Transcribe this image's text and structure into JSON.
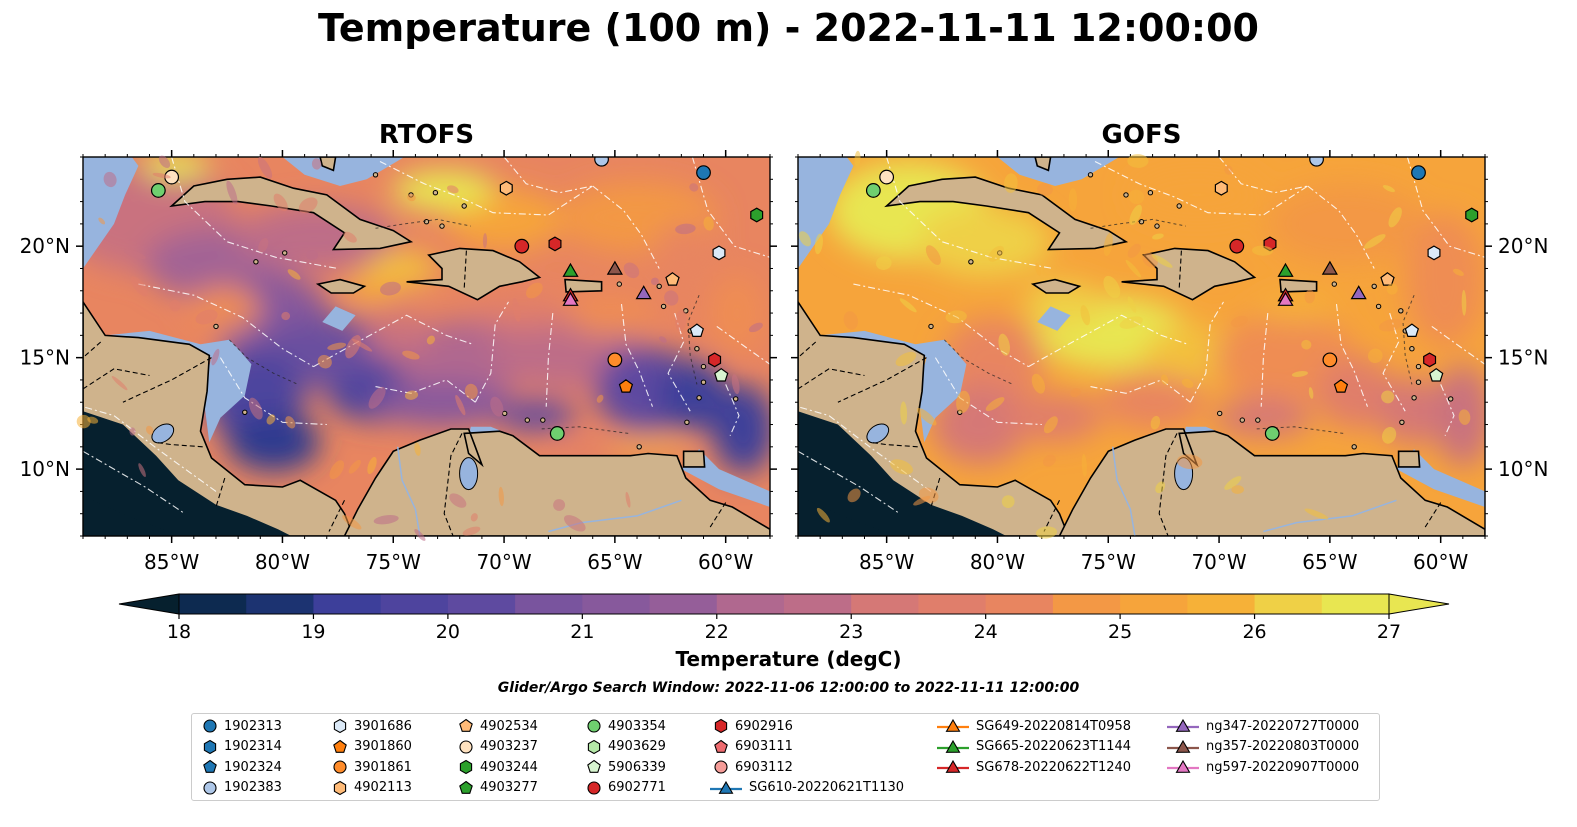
{
  "title": "Temperature (100 m) - 2022-11-11 12:00:00",
  "panels": [
    {
      "title": "RTOFS",
      "lon_ticks": [
        "85°W",
        "80°W",
        "75°W",
        "70°W",
        "65°W",
        "60°W"
      ],
      "lat_ticks": [
        "20°N",
        "15°N",
        "10°N"
      ]
    },
    {
      "title": "GOFS",
      "lon_ticks": [
        "85°W",
        "80°W",
        "75°W",
        "70°W",
        "65°W",
        "60°W"
      ],
      "lat_ticks": [
        "20°N",
        "15°N",
        "10°N"
      ]
    }
  ],
  "colorbar": {
    "label": "Temperature (degC)",
    "ticks": [
      "18",
      "19",
      "20",
      "21",
      "22",
      "23",
      "24",
      "25",
      "26",
      "27"
    ],
    "colors": [
      "#06202e",
      "#0d2a50",
      "#1c3371",
      "#2d3b8f",
      "#3d3f9a",
      "#4e449e",
      "#5e4aa0",
      "#6b4f9f",
      "#79549e",
      "#87599c",
      "#955e99",
      "#a36394",
      "#b0688f",
      "#bd6d88",
      "#c9727f",
      "#d57876",
      "#e07e6b",
      "#e88560",
      "#ef8d52",
      "#f39845",
      "#f6a43b",
      "#f6b138",
      "#f3c03c",
      "#efd046",
      "#e8e651"
    ]
  },
  "search_window": "Glider/Argo Search Window: 2022-11-06 12:00:00 to 2022-11-11 12:00:00",
  "legend": [
    {
      "label": "1902313",
      "marker": "circle",
      "color": "#1f77b4"
    },
    {
      "label": "1902314",
      "marker": "hexagon",
      "color": "#1f77b4"
    },
    {
      "label": "1902324",
      "marker": "pentagon",
      "color": "#1f77b4"
    },
    {
      "label": "1902383",
      "marker": "circle",
      "color": "#aec7e8"
    },
    {
      "label": "3901686",
      "marker": "hexagon",
      "color": "#dbe9f7"
    },
    {
      "label": "3901860",
      "marker": "pentagon",
      "color": "#ff7f0e"
    },
    {
      "label": "3901861",
      "marker": "circle",
      "color": "#ff8c2a"
    },
    {
      "label": "4902113",
      "marker": "hexagon",
      "color": "#ffbb78"
    },
    {
      "label": "4902534",
      "marker": "pentagon",
      "color": "#ffbb78"
    },
    {
      "label": "4903237",
      "marker": "circle",
      "color": "#ffe2c0"
    },
    {
      "label": "4903244",
      "marker": "hexagon",
      "color": "#2ca02c"
    },
    {
      "label": "4903277",
      "marker": "pentagon",
      "color": "#2ca02c"
    },
    {
      "label": "4903354",
      "marker": "circle",
      "color": "#6fcf6f"
    },
    {
      "label": "4903629",
      "marker": "hexagon",
      "color": "#b5e8a8"
    },
    {
      "label": "5906339",
      "marker": "pentagon",
      "color": "#d8f5d0"
    },
    {
      "label": "6902771",
      "marker": "circle",
      "color": "#d62728"
    },
    {
      "label": "6902916",
      "marker": "hexagon",
      "color": "#d62728"
    },
    {
      "label": "6903111",
      "marker": "pentagon",
      "color": "#ee6b6f"
    },
    {
      "label": "6903112",
      "marker": "circle",
      "color": "#f59c98"
    },
    {
      "label": "SG610-20220621T1130",
      "marker": "triangle-line",
      "color": "#1f77b4"
    },
    {
      "label": "SG649-20220814T0958",
      "marker": "triangle-line",
      "color": "#ff7f0e"
    },
    {
      "label": "SG665-20220623T1144",
      "marker": "triangle-line",
      "color": "#2ca02c"
    },
    {
      "label": "SG678-20220622T1240",
      "marker": "triangle-line",
      "color": "#d62728"
    },
    {
      "label": "ng347-20220727T0000",
      "marker": "triangle-line",
      "color": "#9467bd"
    },
    {
      "label": "ng357-20220803T0000",
      "marker": "triangle-line",
      "color": "#8c564b"
    },
    {
      "label": "ng597-20220907T0000",
      "marker": "triangle-line",
      "color": "#e377c2"
    }
  ],
  "map": {
    "lon_range": [
      -89,
      -58
    ],
    "lat_range": [
      7,
      24
    ],
    "colors": {
      "land": "#cfb38c",
      "shallow": "#97b4de",
      "deep_cold": "#06202e",
      "coast": "#000000",
      "eez": "#ffffff"
    },
    "observations": [
      {
        "lon": -85.6,
        "lat": 22.5,
        "marker": "circle",
        "color": "#6fcf6f"
      },
      {
        "lon": -85.0,
        "lat": 23.1,
        "marker": "circle",
        "color": "#ffe2c0"
      },
      {
        "lon": -65.6,
        "lat": 23.9,
        "marker": "circle",
        "color": "#aec7e8"
      },
      {
        "lon": -61.0,
        "lat": 23.3,
        "marker": "circle",
        "color": "#1f77b4"
      },
      {
        "lon": -69.9,
        "lat": 22.6,
        "marker": "hexagon",
        "color": "#ffbb78"
      },
      {
        "lon": -58.6,
        "lat": 21.4,
        "marker": "hexagon",
        "color": "#2ca02c"
      },
      {
        "lon": -60.3,
        "lat": 19.7,
        "marker": "hexagon",
        "color": "#dbe9f7"
      },
      {
        "lon": -69.2,
        "lat": 20.0,
        "marker": "circle",
        "color": "#d62728"
      },
      {
        "lon": -67.7,
        "lat": 20.1,
        "marker": "hexagon",
        "color": "#d62728"
      },
      {
        "lon": -62.4,
        "lat": 18.5,
        "marker": "pentagon",
        "color": "#ffbb78"
      },
      {
        "lon": -65.0,
        "lat": 14.9,
        "marker": "circle",
        "color": "#ff8c2a"
      },
      {
        "lon": -64.5,
        "lat": 13.7,
        "marker": "pentagon",
        "color": "#ff7f0e"
      },
      {
        "lon": -60.5,
        "lat": 14.9,
        "marker": "hexagon",
        "color": "#d62728"
      },
      {
        "lon": -60.2,
        "lat": 14.2,
        "marker": "pentagon",
        "color": "#d8f5d0"
      },
      {
        "lon": -61.3,
        "lat": 16.2,
        "marker": "pentagon",
        "color": "#dbe9f7"
      },
      {
        "lon": -67.6,
        "lat": 11.6,
        "marker": "circle",
        "color": "#6fcf6f"
      },
      {
        "lon": -67.0,
        "lat": 18.9,
        "marker": "triangle",
        "color": "#2ca02c"
      },
      {
        "lon": -67.0,
        "lat": 17.8,
        "marker": "triangle",
        "color": "#d62728"
      },
      {
        "lon": -67.0,
        "lat": 17.6,
        "marker": "triangle",
        "color": "#e377c2"
      },
      {
        "lon": -65.0,
        "lat": 19.0,
        "marker": "triangle",
        "color": "#8c564b"
      },
      {
        "lon": -63.7,
        "lat": 17.9,
        "marker": "triangle",
        "color": "#9467bd"
      }
    ]
  }
}
